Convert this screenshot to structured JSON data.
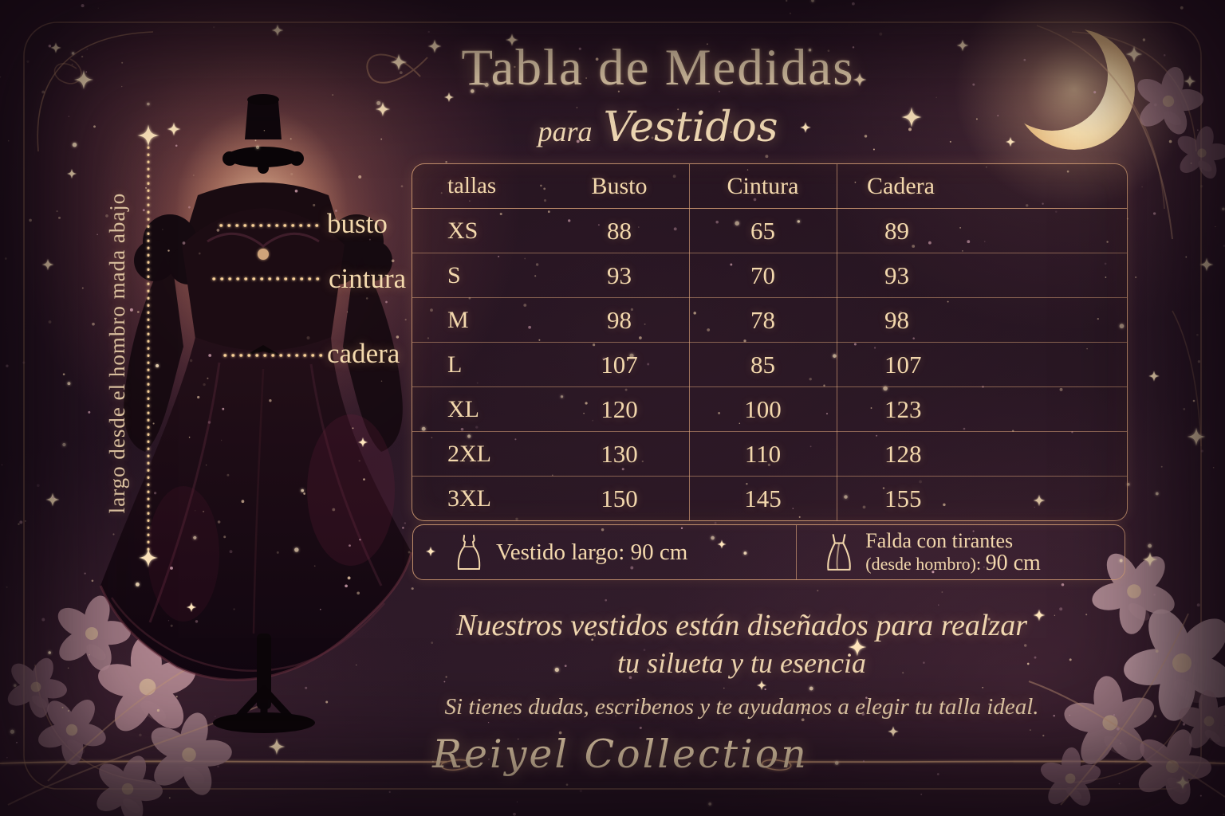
{
  "poster": {
    "title": "Tabla de Medidas",
    "subtitle_prefix": "para",
    "subtitle": "Vestidos"
  },
  "diagram": {
    "vertical_label": "largo desde el hombro mada abajo",
    "bust_label": "busto",
    "waist_label": "cintura",
    "hip_label": "cadera"
  },
  "table": {
    "headers": [
      "tallas",
      "Busto",
      "Cintura",
      "Cadera"
    ],
    "rows": [
      {
        "size": "XS",
        "busto": "88",
        "cintura": "65",
        "cadera": "89"
      },
      {
        "size": "S",
        "busto": "93",
        "cintura": "70",
        "cadera": "93"
      },
      {
        "size": "M",
        "busto": "98",
        "cintura": "78",
        "cadera": "98"
      },
      {
        "size": "L",
        "busto": "107",
        "cintura": "85",
        "cadera": "107"
      },
      {
        "size": "XL",
        "busto": "120",
        "cintura": "100",
        "cadera": "123"
      },
      {
        "size": "2XL",
        "busto": "130",
        "cintura": "110",
        "cadera": "128"
      },
      {
        "size": "3XL",
        "busto": "150",
        "cintura": "145",
        "cadera": "155"
      }
    ]
  },
  "notes": {
    "left_label": "Vestido largo:",
    "left_value": "90 cm",
    "right_line1": "Falda con tirantes",
    "right_line2_label": "(desde hombro):",
    "right_line2_value": "90 cm"
  },
  "description": {
    "line1": "Nuestros vestidos están diseñados para realzar",
    "line2": "tu silueta y tu esencia",
    "line3": "Si tienes dudas, escribenos y te ayudamos a elegir tu talla ideal."
  },
  "footer": {
    "brand": "Reiyel Collection"
  },
  "icons": {
    "moon": "crescent-moon",
    "dress": "long-dress",
    "skirt": "strap-skirt",
    "sparkle": "four-point-star"
  },
  "colors": {
    "background": "#251422",
    "text_cream": "#f3d8ad",
    "accent_line": "#d8a67c",
    "glow": "#e8b288",
    "moon": "#ffeec6"
  }
}
